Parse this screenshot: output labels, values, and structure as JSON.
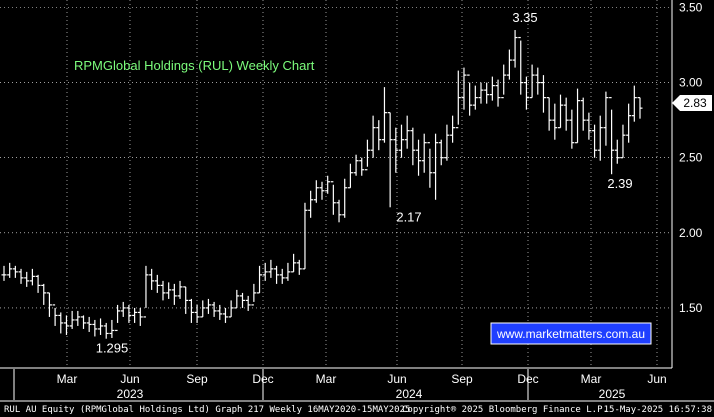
{
  "chart_data": {
    "type": "ohlc",
    "title": "RPMGlobal Holdings (RUL) Weekly Chart",
    "y_ticks": [
      "3.50",
      "3.00",
      "2.50",
      "2.00",
      "1.50"
    ],
    "ylim": [
      1.1,
      3.55
    ],
    "x_month_ticks": [
      "Mar",
      "Jun",
      "Sep",
      "Dec",
      "Mar",
      "Jun",
      "Sep",
      "Dec",
      "Mar",
      "Jun"
    ],
    "x_year_ticks": [
      "2023",
      "2024",
      "2025"
    ],
    "grid": true,
    "last_price": "2.83",
    "annotations": [
      {
        "label": "1.295",
        "value": 1.295
      },
      {
        "label": "2.17",
        "value": 2.17
      },
      {
        "label": "3.35",
        "value": 3.35
      },
      {
        "label": "2.39",
        "value": 2.39
      }
    ],
    "closes": [
      1.72,
      1.76,
      1.74,
      1.7,
      1.68,
      1.71,
      1.65,
      1.6,
      1.52,
      1.45,
      1.4,
      1.38,
      1.42,
      1.44,
      1.4,
      1.39,
      1.36,
      1.38,
      1.33,
      1.35,
      1.48,
      1.5,
      1.45,
      1.47,
      1.44,
      1.72,
      1.68,
      1.65,
      1.6,
      1.62,
      1.58,
      1.64,
      1.55,
      1.47,
      1.44,
      1.5,
      1.52,
      1.48,
      1.46,
      1.44,
      1.5,
      1.58,
      1.55,
      1.52,
      1.6,
      1.72,
      1.74,
      1.76,
      1.72,
      1.7,
      1.74,
      1.8,
      1.76,
      2.15,
      2.22,
      2.3,
      2.28,
      2.34,
      2.2,
      2.12,
      2.3,
      2.4,
      2.48,
      2.42,
      2.55,
      2.7,
      2.62,
      2.8,
      2.62,
      2.55,
      2.62,
      2.68,
      2.55,
      2.48,
      2.6,
      2.4,
      2.6,
      2.5,
      2.65,
      2.7,
      2.9,
      3.05,
      2.85,
      2.9,
      2.95,
      2.92,
      2.98,
      2.9,
      3.05,
      3.15,
      3.3,
      3.0,
      2.9,
      3.05,
      3.0,
      2.9,
      2.75,
      2.7,
      2.85,
      2.75,
      2.6,
      2.88,
      2.75,
      2.68,
      2.55,
      2.7,
      2.9,
      2.55,
      2.5,
      2.65,
      2.78,
      2.9,
      2.83
    ],
    "highs": [
      1.78,
      1.8,
      1.78,
      1.76,
      1.74,
      1.76,
      1.72,
      1.66,
      1.6,
      1.5,
      1.47,
      1.45,
      1.48,
      1.48,
      1.45,
      1.44,
      1.42,
      1.43,
      1.4,
      1.42,
      1.52,
      1.54,
      1.52,
      1.5,
      1.5,
      1.78,
      1.76,
      1.72,
      1.68,
      1.67,
      1.66,
      1.68,
      1.64,
      1.56,
      1.52,
      1.55,
      1.56,
      1.54,
      1.52,
      1.5,
      1.55,
      1.62,
      1.6,
      1.58,
      1.66,
      1.78,
      1.8,
      1.82,
      1.78,
      1.76,
      1.8,
      1.86,
      1.82,
      2.2,
      2.28,
      2.35,
      2.34,
      2.38,
      2.32,
      2.22,
      2.36,
      2.46,
      2.52,
      2.5,
      2.62,
      2.78,
      2.75,
      2.97,
      2.8,
      2.7,
      2.72,
      2.78,
      2.7,
      2.62,
      2.66,
      2.56,
      2.66,
      2.62,
      2.72,
      2.78,
      3.08,
      3.1,
      3.0,
      2.98,
      3.0,
      3.0,
      3.04,
      3.02,
      3.12,
      3.22,
      3.35,
      3.28,
      3.04,
      3.12,
      3.1,
      3.05,
      2.9,
      2.86,
      2.92,
      2.9,
      2.82,
      2.96,
      2.9,
      2.8,
      2.72,
      2.78,
      2.94,
      2.82,
      2.62,
      2.72,
      2.86,
      2.98,
      2.9
    ],
    "lows": [
      1.68,
      1.7,
      1.7,
      1.66,
      1.64,
      1.65,
      1.6,
      1.52,
      1.44,
      1.38,
      1.33,
      1.32,
      1.36,
      1.38,
      1.36,
      1.34,
      1.31,
      1.32,
      1.295,
      1.3,
      1.4,
      1.44,
      1.4,
      1.4,
      1.38,
      1.5,
      1.62,
      1.6,
      1.55,
      1.56,
      1.52,
      1.56,
      1.46,
      1.4,
      1.4,
      1.44,
      1.46,
      1.44,
      1.42,
      1.4,
      1.44,
      1.5,
      1.5,
      1.48,
      1.54,
      1.6,
      1.68,
      1.7,
      1.66,
      1.66,
      1.68,
      1.74,
      1.72,
      1.76,
      2.1,
      2.2,
      2.22,
      2.26,
      2.12,
      2.07,
      2.1,
      2.3,
      2.38,
      2.38,
      2.44,
      2.5,
      2.55,
      2.6,
      2.17,
      2.4,
      2.5,
      2.56,
      2.45,
      2.38,
      2.4,
      2.3,
      2.22,
      2.45,
      2.48,
      2.6,
      2.72,
      2.82,
      2.78,
      2.82,
      2.86,
      2.86,
      2.88,
      2.84,
      2.92,
      3.02,
      3.1,
      2.92,
      2.82,
      2.9,
      2.92,
      2.8,
      2.68,
      2.62,
      2.7,
      2.68,
      2.56,
      2.6,
      2.68,
      2.62,
      2.5,
      2.48,
      2.58,
      2.39,
      2.46,
      2.5,
      2.6,
      2.74,
      2.76
    ]
  },
  "watermark": "www.marketmatters.com.au",
  "footer": {
    "left": "RUL AU Equity (RPMGlobal Holdings Ltd) Graph 217  Weekly 16MAY2020-15MAY2025",
    "center": "Copyright® 2025 Bloomberg Finance L.P.",
    "right": "15-May-2025 16:57:38"
  },
  "colors": {
    "background": "#000000",
    "bars": "#ffffff",
    "grid": "#ffffff",
    "title": "#7CFC7C",
    "watermark_bg": "#1f3fff",
    "watermark_border": "#ffffff",
    "last_price_bg": "#ffffff"
  }
}
